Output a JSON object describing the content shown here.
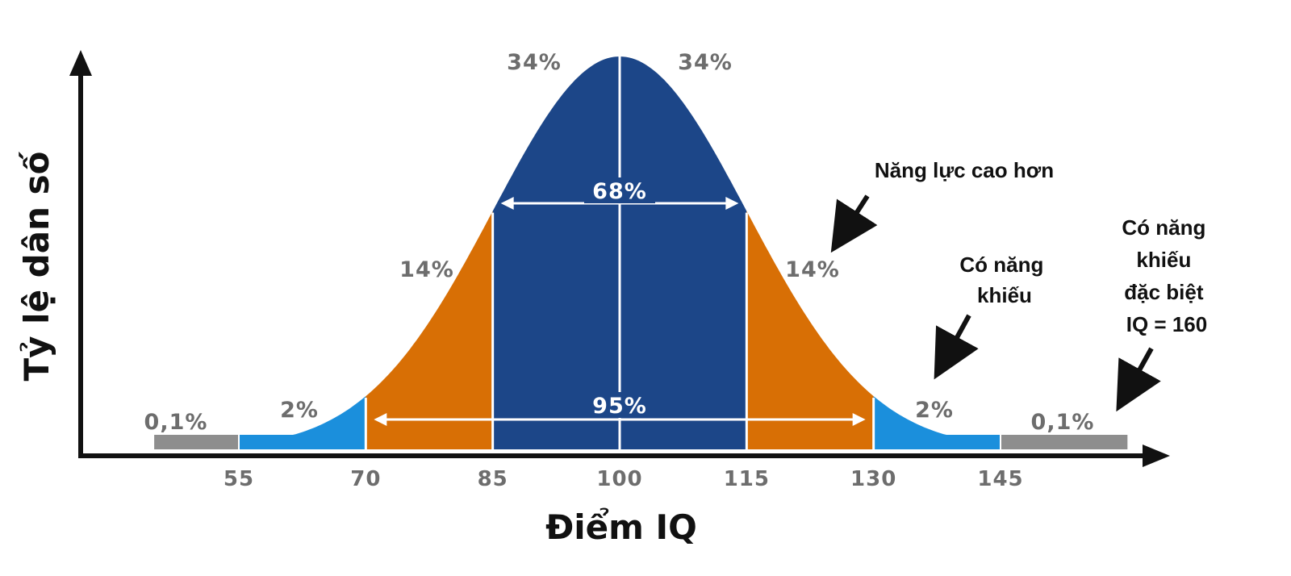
{
  "chart_data": {
    "type": "area",
    "xlabel": "Điểm IQ",
    "ylabel": "Tỷ lệ dân số",
    "xlim": [
      40,
      160
    ],
    "mean": 100,
    "sd": 15,
    "x_ticks": [
      55,
      70,
      85,
      100,
      115,
      130,
      145
    ],
    "segments": [
      {
        "from": 45,
        "to": 55,
        "percent_label": "0,1%",
        "color": "#8e8e8e"
      },
      {
        "from": 55,
        "to": 70,
        "percent_label": "2%",
        "color": "#1b8fdc"
      },
      {
        "from": 70,
        "to": 85,
        "percent_label": "14%",
        "color": "#d86f05"
      },
      {
        "from": 85,
        "to": 100,
        "percent_label": "34%",
        "color": "#1c4688"
      },
      {
        "from": 100,
        "to": 115,
        "percent_label": "34%",
        "color": "#1c4688"
      },
      {
        "from": 115,
        "to": 130,
        "percent_label": "14%",
        "color": "#d86f05"
      },
      {
        "from": 130,
        "to": 145,
        "percent_label": "2%",
        "color": "#1b8fdc"
      },
      {
        "from": 145,
        "to": 160,
        "percent_label": "0,1%",
        "color": "#8e8e8e"
      }
    ],
    "spans": [
      {
        "label": "68%",
        "from": 85,
        "to": 115
      },
      {
        "label": "95%",
        "from": 70,
        "to": 130
      }
    ],
    "annotations": [
      {
        "lines": [
          "Năng lực cao hơn"
        ]
      },
      {
        "lines": [
          "Có năng",
          "khiếu"
        ]
      },
      {
        "lines": [
          "Có năng",
          "khiếu",
          "đặc biệt",
          "IQ = 160"
        ]
      }
    ]
  }
}
